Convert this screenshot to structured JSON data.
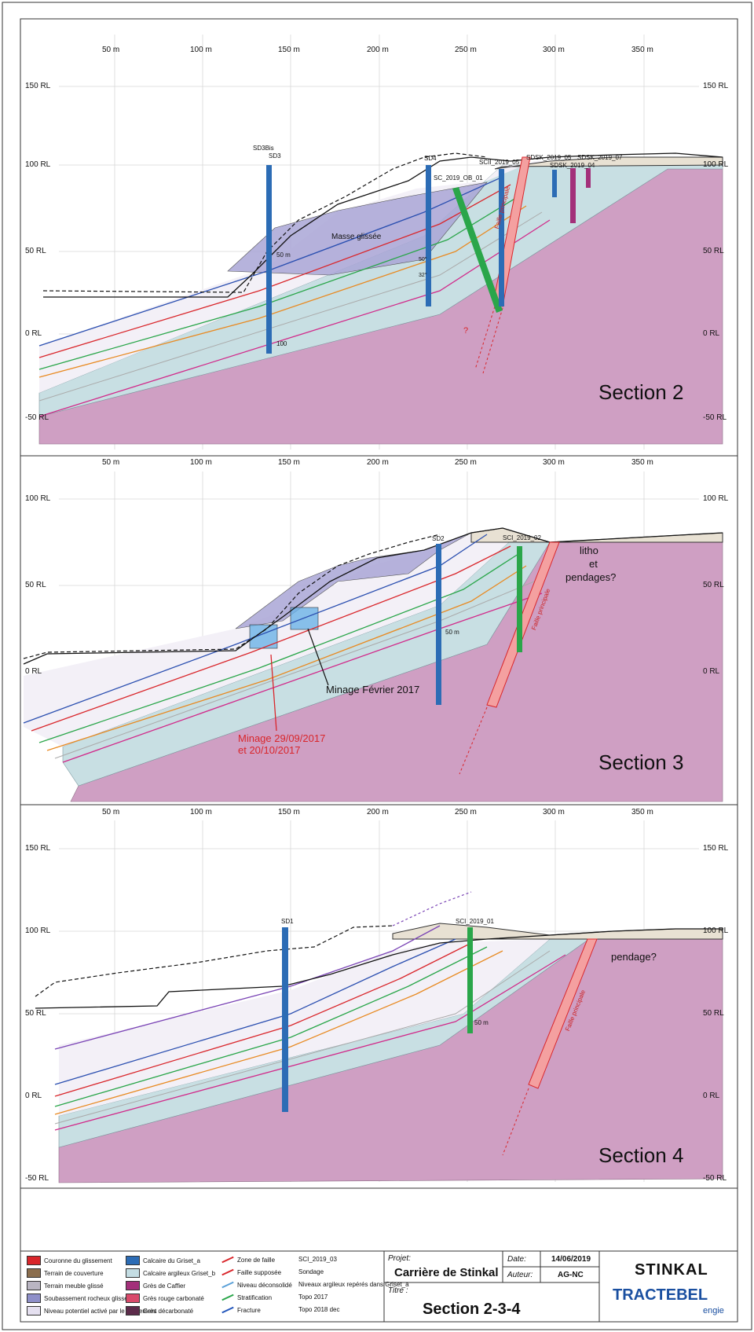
{
  "x_axis_ticks": [
    "50 m",
    "100 m",
    "150 m",
    "200 m",
    "250 m",
    "300 m",
    "350 m"
  ],
  "sections": [
    {
      "title": "Section 2",
      "rl_labels": [
        "150 RL",
        "100 RL",
        "50 RL",
        "0 RL",
        "-50 RL"
      ],
      "boreholes": [
        "SD3Bis",
        "SD3",
        "SD4",
        "SC_2019_OB_01",
        "SCII_2019_05",
        "SDSK_2019_05",
        "SDSK_2019_04",
        "SDSK_2019_07"
      ],
      "annotations": [
        "Masse glissée",
        "Faille principale",
        "?",
        "50 m",
        "100",
        "50°",
        "32°"
      ]
    },
    {
      "title": "Section 3",
      "rl_labels": [
        "100 RL",
        "50 RL",
        "0 RL"
      ],
      "boreholes": [
        "SD2",
        "SCI_2019_02"
      ],
      "annotations": [
        "litho",
        "et",
        "pendages?",
        "Minage Février 2017",
        "Minage 29/09/2017",
        "et 20/10/2017",
        "Faille principale",
        "50 m"
      ]
    },
    {
      "title": "Section 4",
      "rl_labels": [
        "150 RL",
        "100 RL",
        "50 RL",
        "0 RL",
        "-50 RL"
      ],
      "boreholes": [
        "SD1",
        "SCI_2019_01"
      ],
      "annotations": [
        "pendage?",
        "Faille principale",
        "50 m"
      ]
    }
  ],
  "legend": {
    "col1": [
      {
        "label": "Couronne du glissement",
        "color": "#d9262b"
      },
      {
        "label": "Terrain de couverture",
        "color": "#8b6e4e"
      },
      {
        "label": "Terrain meuble glissé",
        "color": "#b9b5c2"
      },
      {
        "label": "Soubassement rocheux glissé",
        "color": "#8e8fc9"
      },
      {
        "label": "Niveau potentiel activé par le glissement",
        "color": "#e5e0f0"
      }
    ],
    "col2": [
      {
        "label": "Calcaire du Griset_a",
        "color": "#2c6cb5"
      },
      {
        "label": "Calcaire argileux Griset_b",
        "color": "#c4dde3"
      },
      {
        "label": "Grès de Caffier",
        "color": "#a3307a"
      },
      {
        "label": "Grès rouge carbonaté",
        "color": "#d94a6a"
      },
      {
        "label": "Grès décarbonaté",
        "color": "#5c2b4a"
      }
    ],
    "col3": [
      {
        "label": "Zone de faille",
        "color": "#d9262b"
      },
      {
        "label": "Faille supposée",
        "color": "#d9262b"
      },
      {
        "label": "Niveau déconsolidé",
        "color": "#5aa0d8"
      },
      {
        "label": "Stratification",
        "color": "#2aa64a"
      },
      {
        "label": "Fracture",
        "color": "#2255bb"
      }
    ],
    "col4": [
      {
        "label": "SCI_2019_03"
      },
      {
        "label": "Sondage"
      },
      {
        "label": "Niveaux argileux repérés dans Griset_a"
      },
      {
        "label": "Topo 2017"
      },
      {
        "label": "Topo 2018 dec"
      }
    ]
  },
  "title_block": {
    "project_label": "Projet:",
    "project_value": "Carrière de Stinkal",
    "date_label": "Date:",
    "date_value": "14/06/2019",
    "author_label": "Auteur:",
    "author_value": "AG-NC",
    "title_label": "Titre :",
    "title_value": "Section 2-3-4",
    "logo1": "STINKAL",
    "logo2": "TRACTEBEL",
    "logo3": "engie"
  },
  "colors": {
    "pink_bedrock": "#cf9fc3",
    "griset_b": "#c8dfe3",
    "slide_mass": "#a9a6d6",
    "cover": "#e8e1d3"
  }
}
